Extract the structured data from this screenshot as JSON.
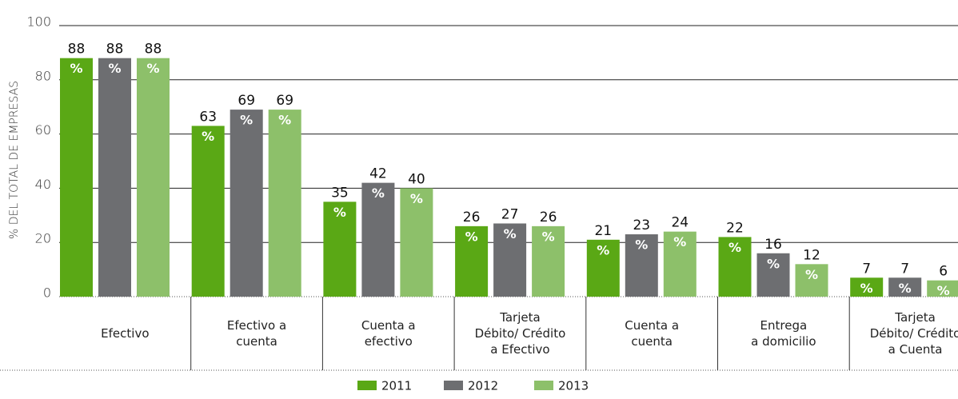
{
  "chart_data": {
    "type": "bar",
    "y_label": "% DEL TOTAL DE EMPRESAS",
    "categories": [
      "Efectivo",
      "Efectivo a\ncuenta",
      "Cuenta a\nefectivo",
      "Tarjeta\nDébito/ Crédito\na Efectivo",
      "Cuenta a\ncuenta",
      "Entrega\na domicilio",
      "Tarjeta\nDébito/ Crédito\na Cuenta"
    ],
    "series": [
      {
        "name": "2011",
        "color": "#5aa815",
        "values": [
          88,
          63,
          35,
          26,
          21,
          22,
          7
        ]
      },
      {
        "name": "2012",
        "color": "#6d6e71",
        "values": [
          88,
          69,
          42,
          27,
          23,
          16,
          7
        ]
      },
      {
        "name": "2013",
        "color": "#8dc06a",
        "values": [
          88,
          69,
          40,
          26,
          24,
          12,
          6
        ]
      }
    ],
    "bar_unit_label": "%",
    "ylim": [
      0,
      100
    ],
    "yticks": [
      0,
      20,
      40,
      60,
      80,
      100
    ],
    "grid": true,
    "legend": "bottom"
  }
}
